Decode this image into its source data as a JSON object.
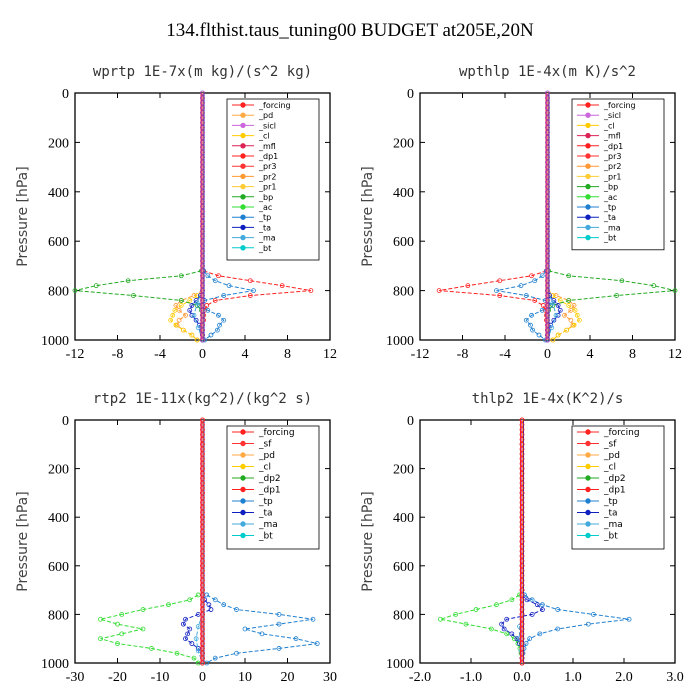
{
  "title": "134.flthist.taus_tuning00  BUDGET at205E,20N",
  "chart_data": [
    {
      "type": "line",
      "title": "wprtp  1E-7x(m kg)/(s^2 kg)",
      "ylabel": "Pressure [hPa]",
      "xlim": [
        -12,
        12
      ],
      "ylim": [
        1000,
        0
      ],
      "xticks": [
        -12,
        -8,
        -4,
        0,
        4,
        8,
        12
      ],
      "xtick_labels": [
        "-12",
        "-8",
        "-4",
        "0",
        "4",
        "8",
        "12"
      ],
      "yticks": [
        0,
        200,
        400,
        600,
        800,
        1000
      ],
      "legend": [
        "_forcing",
        "_pd",
        "_sicl",
        "_cl",
        "_mfl",
        "_dp1",
        "_pr3",
        "_pr2",
        "_pr1",
        "_bp",
        "_ac",
        "_tp",
        "_ta",
        "_ma",
        "_bt"
      ],
      "legend_position": "top-right",
      "series": [
        {
          "name": "_dp1",
          "color": "#ff2020",
          "pressure": [
            720,
            740,
            760,
            780,
            800,
            820,
            840,
            860,
            880,
            900,
            920,
            940,
            960,
            980,
            1000
          ],
          "values": [
            0.1,
            1.5,
            4.5,
            7.5,
            10.2,
            4.5,
            1.2,
            0.4,
            0.2,
            0.1,
            0.1,
            0,
            0,
            0,
            0
          ]
        },
        {
          "name": "_pr3",
          "color": "#ff9933",
          "pressure": [
            800,
            820,
            840,
            860,
            880,
            900,
            920,
            940,
            960,
            980,
            1000
          ],
          "values": [
            0,
            -0.8,
            -2.0,
            -2.5,
            -2.2,
            -1.6,
            -2.2,
            -2.4,
            -1.8,
            -1.0,
            -0.5
          ]
        },
        {
          "name": "_pr1",
          "color": "#ffcc00",
          "pressure": [
            820,
            840,
            860,
            880,
            900,
            920,
            940,
            960,
            980,
            1000
          ],
          "values": [
            -0.5,
            -1.2,
            -2.0,
            -2.6,
            -2.8,
            -3.0,
            -2.5,
            -1.8,
            -1.0,
            -0.5
          ]
        },
        {
          "name": "_bp",
          "color": "#22aa22",
          "pressure": [
            720,
            740,
            760,
            780,
            800,
            820,
            840,
            860,
            880,
            900
          ],
          "values": [
            -0.1,
            -2.0,
            -7.0,
            -10.0,
            -12.0,
            -6.5,
            -2.0,
            -0.5,
            -0.1,
            0
          ]
        },
        {
          "name": "_tp",
          "color": "#2080d0",
          "pressure": [
            720,
            740,
            760,
            780,
            800,
            820,
            840,
            860,
            880,
            900,
            920,
            940,
            960,
            980,
            1000
          ],
          "values": [
            0.1,
            0.5,
            1.2,
            2.5,
            4.8,
            2.0,
            0.2,
            -0.3,
            0.5,
            1.5,
            2.0,
            1.6,
            1.4,
            0.8,
            0.2
          ]
        },
        {
          "name": "_ta",
          "color": "#1020c0",
          "pressure": [
            820,
            840,
            860,
            880,
            900,
            920,
            940,
            960,
            980,
            1000
          ],
          "values": [
            -0.2,
            -0.6,
            -1.0,
            -1.2,
            -1.0,
            -0.6,
            -0.3,
            -0.1,
            0,
            0
          ]
        },
        {
          "name": "_ma",
          "color": "#44aadd",
          "pressure": [
            800,
            850,
            900,
            950,
            1000
          ],
          "values": [
            0,
            -0.5,
            -0.8,
            -0.4,
            0
          ]
        }
      ]
    },
    {
      "type": "line",
      "title": "wpthlp  1E-4x(m K)/s^2",
      "ylabel": "Pressure [hPa]",
      "xlim": [
        -12,
        12
      ],
      "ylim": [
        1000,
        0
      ],
      "xticks": [
        -12,
        -8,
        -4,
        0,
        4,
        8,
        12
      ],
      "xtick_labels": [
        "-12",
        "-8",
        "-4",
        "0",
        "4",
        "8",
        "12"
      ],
      "yticks": [
        0,
        200,
        400,
        600,
        800,
        1000
      ],
      "legend": [
        "_forcing",
        "_sicl",
        "_cl",
        "_mfl",
        "_dp1",
        "_pr3",
        "_pr2",
        "_pr1",
        "_bp",
        "_ac",
        "_tp",
        "_ta",
        "_ma",
        "_bt"
      ],
      "legend_position": "top-right",
      "series": [
        {
          "name": "_dp1",
          "color": "#ff2020",
          "pressure": [
            720,
            740,
            760,
            780,
            800,
            820,
            840,
            860,
            880,
            900,
            920,
            940,
            960,
            980,
            1000
          ],
          "values": [
            -0.1,
            -1.5,
            -4.5,
            -7.5,
            -10.2,
            -4.5,
            -1.2,
            -0.4,
            -0.2,
            -0.1,
            -0.1,
            0,
            0,
            0,
            0
          ]
        },
        {
          "name": "_pr3",
          "color": "#ff9933",
          "pressure": [
            800,
            820,
            840,
            860,
            880,
            900,
            920,
            940,
            960,
            980,
            1000
          ],
          "values": [
            0,
            0.8,
            2.0,
            2.5,
            2.2,
            1.6,
            2.2,
            2.4,
            1.8,
            1.0,
            0.5
          ]
        },
        {
          "name": "_pr1",
          "color": "#ffcc00",
          "pressure": [
            820,
            840,
            860,
            880,
            900,
            920,
            940,
            960,
            980,
            1000
          ],
          "values": [
            0.5,
            1.2,
            2.0,
            2.6,
            2.8,
            3.0,
            2.5,
            1.8,
            1.0,
            0.5
          ]
        },
        {
          "name": "_bp",
          "color": "#22aa22",
          "pressure": [
            720,
            740,
            760,
            780,
            800,
            820,
            840,
            860,
            880,
            900
          ],
          "values": [
            0.1,
            2.0,
            7.0,
            10.0,
            12.0,
            6.5,
            2.0,
            0.5,
            0.1,
            0
          ]
        },
        {
          "name": "_tp",
          "color": "#2080d0",
          "pressure": [
            720,
            740,
            760,
            780,
            800,
            820,
            840,
            860,
            880,
            900,
            920,
            940,
            960,
            980,
            1000
          ],
          "values": [
            -0.1,
            -0.5,
            -1.2,
            -2.5,
            -4.8,
            -2.0,
            -0.2,
            0.3,
            -0.5,
            -1.5,
            -2.0,
            -1.6,
            -1.4,
            -0.8,
            -0.2
          ]
        },
        {
          "name": "_ta",
          "color": "#1020c0",
          "pressure": [
            820,
            840,
            860,
            880,
            900,
            920,
            940,
            960,
            980,
            1000
          ],
          "values": [
            0.2,
            0.6,
            1.0,
            1.2,
            1.0,
            0.6,
            0.3,
            0.1,
            0,
            0
          ]
        },
        {
          "name": "_ma",
          "color": "#44aadd",
          "pressure": [
            800,
            850,
            900,
            950,
            1000
          ],
          "values": [
            0,
            0.5,
            0.8,
            0.4,
            0
          ]
        }
      ]
    },
    {
      "type": "line",
      "title": "rtp2  1E-11x(kg^2)/(kg^2 s)",
      "ylabel": "Pressure [hPa]",
      "xlim": [
        -30,
        30
      ],
      "ylim": [
        1000,
        0
      ],
      "xticks": [
        -30,
        -20,
        -10,
        0,
        10,
        20,
        30
      ],
      "xtick_labels": [
        "-30",
        "-20",
        "-10",
        "0",
        "10",
        "20",
        "30"
      ],
      "yticks": [
        0,
        200,
        400,
        600,
        800,
        1000
      ],
      "legend": [
        "_forcing",
        "_sf",
        "_pd",
        "_cl",
        "_dp2",
        "_dp1",
        "_tp",
        "_ta",
        "_ma",
        "_bt"
      ],
      "legend_position": "top-right",
      "series": [
        {
          "name": "_dp1",
          "color": "#33dd33",
          "pressure": [
            720,
            740,
            760,
            780,
            800,
            820,
            840,
            860,
            880,
            900,
            920,
            940,
            960,
            980,
            1000
          ],
          "values": [
            -1,
            -3,
            -8,
            -14,
            -19,
            -24,
            -20,
            -14,
            -19,
            -24,
            -20,
            -12,
            -6,
            -2,
            -1
          ]
        },
        {
          "name": "_tp",
          "color": "#2080d0",
          "pressure": [
            720,
            740,
            760,
            780,
            800,
            820,
            840,
            860,
            880,
            900,
            920,
            940,
            960,
            980,
            1000
          ],
          "values": [
            1,
            3,
            5,
            8,
            18,
            26,
            18,
            10,
            14,
            22,
            27,
            18,
            8,
            3,
            1
          ]
        },
        {
          "name": "_ta",
          "color": "#1020c0",
          "pressure": [
            720,
            740,
            760,
            780,
            800,
            820,
            840,
            860,
            880,
            900,
            920,
            940,
            960,
            980,
            1000
          ],
          "values": [
            0,
            0.5,
            1.5,
            2,
            -1,
            -4,
            -4.5,
            -3,
            -3.5,
            -4,
            -2.5,
            -1,
            0,
            0,
            0
          ]
        },
        {
          "name": "_ma",
          "color": "#44aadd",
          "pressure": [
            800,
            850,
            900,
            950,
            1000
          ],
          "values": [
            0,
            -1,
            -1.5,
            -1,
            0
          ]
        },
        {
          "name": "_forcing",
          "color": "#ff2020",
          "pressure": [
            0,
            100,
            200,
            300,
            400,
            500,
            600,
            700,
            800,
            900,
            1000
          ],
          "values": [
            0,
            0,
            0,
            0,
            0,
            0,
            0,
            0,
            0,
            0,
            0
          ]
        }
      ]
    },
    {
      "type": "line",
      "title": "thlp2  1E-4x(K^2)/s",
      "ylabel": "Pressure [hPa]",
      "xlim": [
        -2.0,
        3.0
      ],
      "ylim": [
        1000,
        0
      ],
      "xticks": [
        -2.0,
        -1.0,
        0.0,
        1.0,
        2.0,
        3.0
      ],
      "xtick_labels": [
        "-2.0",
        "-1.0",
        "0.0",
        "1.0",
        "2.0",
        "3.0"
      ],
      "yticks": [
        0,
        200,
        400,
        600,
        800,
        1000
      ],
      "legend": [
        "_forcing",
        "_sf",
        "_pd",
        "_cl",
        "_dp2",
        "_dp1",
        "_tp",
        "_ta",
        "_ma",
        "_bt"
      ],
      "legend_position": "top-right",
      "series": [
        {
          "name": "_dp1",
          "color": "#33dd33",
          "pressure": [
            720,
            740,
            760,
            780,
            800,
            820,
            840,
            860,
            880,
            900,
            920,
            940,
            960,
            980,
            1000
          ],
          "values": [
            -0.05,
            -0.2,
            -0.5,
            -0.9,
            -1.3,
            -1.6,
            -1.1,
            -0.6,
            -0.3,
            -0.15,
            -0.08,
            -0.04,
            -0.02,
            0,
            0
          ]
        },
        {
          "name": "_tp",
          "color": "#2080d0",
          "pressure": [
            720,
            740,
            760,
            780,
            800,
            820,
            840,
            860,
            880,
            900,
            920,
            940,
            960,
            980,
            1000
          ],
          "values": [
            0.05,
            0.2,
            0.4,
            0.7,
            1.4,
            2.1,
            1.3,
            0.7,
            0.35,
            0.15,
            0.08,
            0.04,
            0.02,
            0,
            0
          ]
        },
        {
          "name": "_ta",
          "color": "#1020c0",
          "pressure": [
            720,
            740,
            760,
            780,
            800,
            820,
            840,
            860,
            880,
            900,
            920,
            940,
            960,
            980,
            1000
          ],
          "values": [
            0,
            0.1,
            0.3,
            0.4,
            0.2,
            -0.3,
            -0.4,
            -0.35,
            -0.2,
            -0.1,
            -0.05,
            0,
            0,
            0,
            0
          ]
        },
        {
          "name": "_ma",
          "color": "#44aadd",
          "pressure": [
            800,
            850,
            900,
            950,
            1000
          ],
          "values": [
            0,
            -0.05,
            -0.05,
            -0.02,
            0
          ]
        },
        {
          "name": "_forcing",
          "color": "#ff2020",
          "pressure": [
            0,
            100,
            200,
            300,
            400,
            500,
            600,
            700,
            800,
            900,
            1000
          ],
          "values": [
            0,
            0,
            0,
            0,
            0,
            0,
            0,
            0,
            0,
            0,
            0
          ]
        }
      ]
    }
  ],
  "legend_colors": {
    "_forcing": "#ff2020",
    "_pd": "#ffaa44",
    "_sicl": "#cc66dd",
    "_cl": "#ffcc00",
    "_mfl": "#dd2255",
    "_dp1": "#ff2020",
    "_pr3": "#ff3333",
    "_pr2": "#ff9933",
    "_pr1": "#ffcc33",
    "_bp": "#22aa22",
    "_ac": "#33dd33",
    "_tp": "#2080d0",
    "_ta": "#1020c0",
    "_ma": "#44aadd",
    "_bt": "#00cccc",
    "_sf": "#ff3333",
    "_dp2": "#22aa22"
  }
}
